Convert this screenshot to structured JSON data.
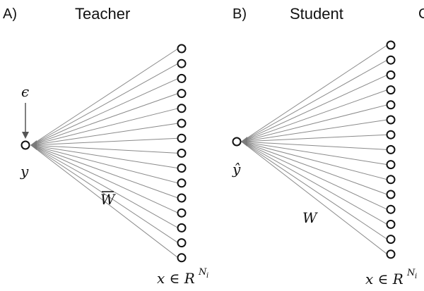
{
  "panels": [
    {
      "letter": "A)",
      "title": "Teacher",
      "output_label": "y",
      "noise_label": "ϵ",
      "weight_label": "W",
      "weight_bar": true,
      "input_label": "x ∈ R",
      "input_superscript": "N",
      "input_subscript": "i",
      "input_node_count": 15,
      "edge_color": "#8a8a8a",
      "arrowhead_color": "#7a7a7a"
    },
    {
      "letter": "B)",
      "title": "Student",
      "output_label": "ŷ",
      "weight_label": "W",
      "weight_bar": false,
      "input_label": "x ∈ R",
      "input_superscript": "N",
      "input_subscript": "i",
      "input_node_count": 15,
      "edge_color": "#8a8a8a",
      "arrowhead_color": "#7a7a7a"
    }
  ],
  "next_panel_letter_fragment": "C"
}
